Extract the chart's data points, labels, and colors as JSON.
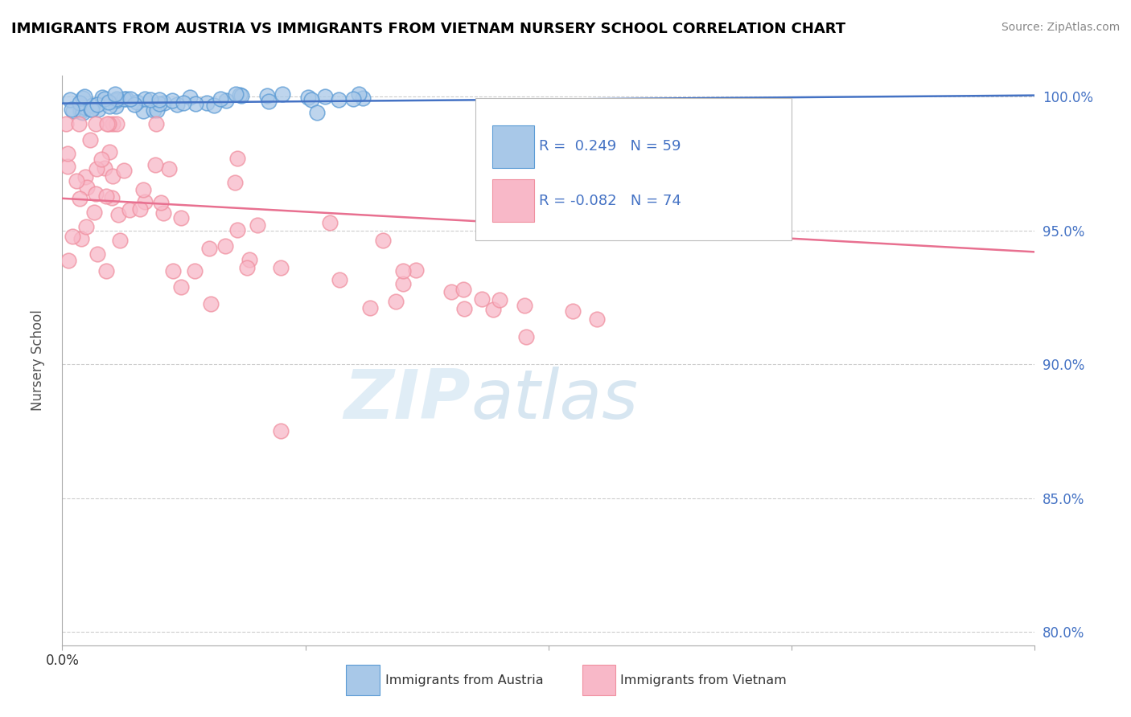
{
  "title": "IMMIGRANTS FROM AUSTRIA VS IMMIGRANTS FROM VIETNAM NURSERY SCHOOL CORRELATION CHART",
  "source_text": "Source: ZipAtlas.com",
  "ylabel": "Nursery School",
  "xlim": [
    0.0,
    0.08
  ],
  "ylim": [
    0.795,
    1.008
  ],
  "ytick_vals": [
    0.8,
    0.85,
    0.9,
    0.95,
    1.0
  ],
  "yticklabels": [
    "80.0%",
    "85.0%",
    "90.0%",
    "95.0%",
    "100.0%"
  ],
  "austria_color": "#5b9bd5",
  "austria_fill": "#a8c8e8",
  "vietnam_color": "#f090a0",
  "vietnam_fill": "#f8b8c8",
  "trendline_austria_color": "#4472c4",
  "trendline_vietnam_color": "#e87090",
  "watermark_zip": "ZIP",
  "watermark_atlas": "atlas",
  "background_color": "#ffffff",
  "grid_color": "#cccccc",
  "title_color": "#000000",
  "ytick_color": "#4472c4",
  "legend_R1": "R =  0.249",
  "legend_N1": "N = 59",
  "legend_R2": "R = -0.082",
  "legend_N2": "N = 74",
  "bottom_label1": "Immigrants from Austria",
  "bottom_label2": "Immigrants from Vietnam",
  "austria_seed": 42,
  "vietnam_seed": 7,
  "austria_N": 59,
  "vietnam_N": 74,
  "trendline_austria_y0": 0.9975,
  "trendline_austria_y1": 1.0005,
  "trendline_vietnam_y0": 0.962,
  "trendline_vietnam_y1": 0.942
}
